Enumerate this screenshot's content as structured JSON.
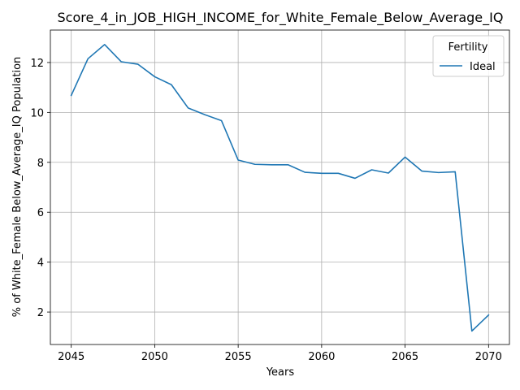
{
  "chart_data": {
    "type": "line",
    "title": "Score_4_in_JOB_HIGH_INCOME_for_White_Female_Below_Average_IQ",
    "xlabel": "Years",
    "ylabel": "% of White_Female Below_Average_IQ Population",
    "xlim": [
      2043.75,
      2071.25
    ],
    "ylim": [
      0.7,
      13.3
    ],
    "xticks": [
      2045,
      2050,
      2055,
      2060,
      2065,
      2070
    ],
    "yticks": [
      2,
      4,
      6,
      8,
      10,
      12
    ],
    "grid": true,
    "legend": {
      "title": "Fertility",
      "placement": "top-right"
    },
    "x": [
      2045,
      2046,
      2047,
      2048,
      2049,
      2050,
      2051,
      2052,
      2053,
      2054,
      2055,
      2056,
      2057,
      2058,
      2059,
      2060,
      2061,
      2062,
      2063,
      2064,
      2065,
      2066,
      2067,
      2068,
      2069,
      2070
    ],
    "series": [
      {
        "name": "Ideal",
        "color": "#1f77b4",
        "values": [
          10.68,
          12.15,
          12.72,
          12.03,
          11.93,
          11.43,
          11.11,
          10.18,
          9.91,
          9.67,
          8.09,
          7.92,
          7.9,
          7.9,
          7.6,
          7.56,
          7.56,
          7.36,
          7.7,
          7.57,
          8.21,
          7.65,
          7.59,
          7.62,
          1.24,
          1.88
        ]
      }
    ]
  }
}
